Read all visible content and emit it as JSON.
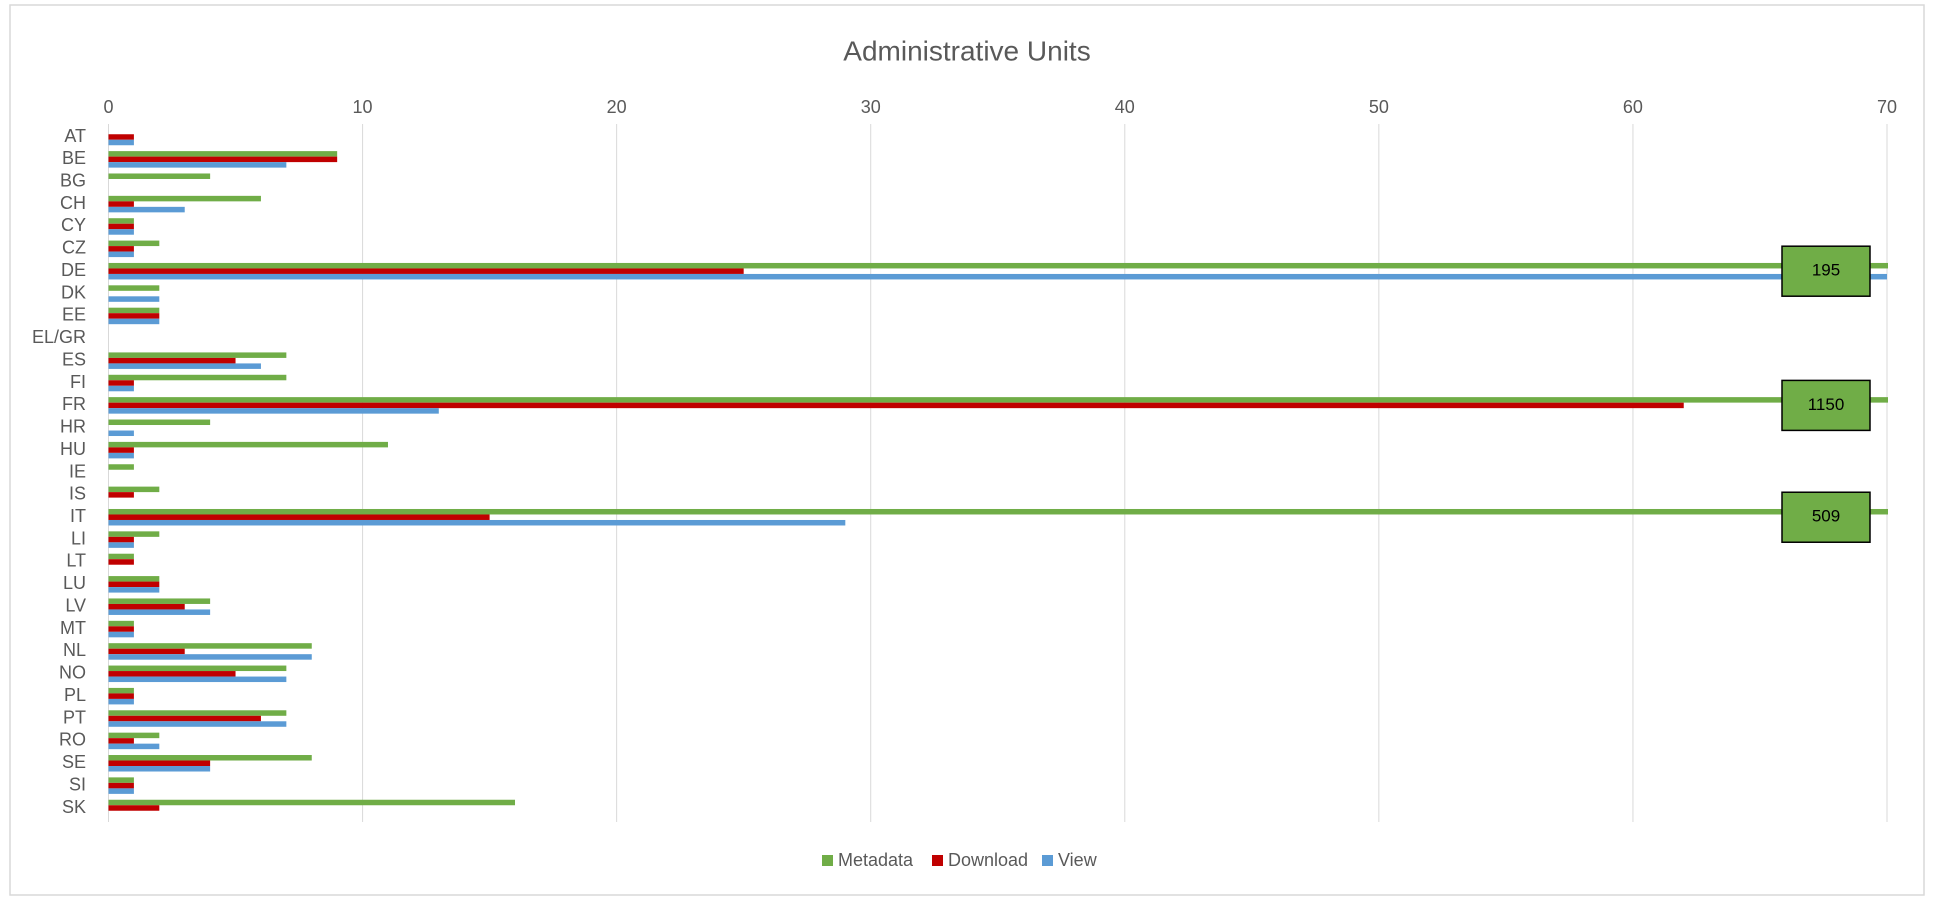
{
  "chart_data": {
    "type": "bar",
    "orientation": "horizontal",
    "title": "Administrative Units",
    "categories": [
      "AT",
      "BE",
      "BG",
      "CH",
      "CY",
      "CZ",
      "DE",
      "DK",
      "EE",
      "EL/GR",
      "ES",
      "FI",
      "FR",
      "HR",
      "HU",
      "IE",
      "IS",
      "IT",
      "LI",
      "LT",
      "LU",
      "LV",
      "MT",
      "NL",
      "NO",
      "PL",
      "PT",
      "RO",
      "SE",
      "SI",
      "SK"
    ],
    "series": [
      {
        "name": "Metadata",
        "color": "#70ad47",
        "values": [
          0,
          9,
          4,
          6,
          1,
          2,
          195,
          2,
          2,
          0,
          7,
          7,
          1150,
          4,
          11,
          1,
          2,
          509,
          2,
          1,
          2,
          4,
          1,
          8,
          7,
          1,
          7,
          2,
          8,
          1,
          16
        ],
        "value_labels": [
          null,
          null,
          null,
          null,
          null,
          null,
          "195",
          null,
          null,
          null,
          null,
          null,
          "1150",
          null,
          null,
          null,
          null,
          "509",
          null,
          null,
          null,
          null,
          null,
          null,
          null,
          null,
          null,
          null,
          null,
          null,
          null
        ]
      },
      {
        "name": "Download",
        "color": "#c00000",
        "values": [
          1,
          9,
          0,
          1,
          1,
          1,
          25,
          0,
          2,
          0,
          5,
          1,
          62,
          0,
          1,
          0,
          1,
          15,
          1,
          1,
          2,
          3,
          1,
          3,
          5,
          1,
          6,
          1,
          4,
          1,
          2
        ]
      },
      {
        "name": "View",
        "color": "#5b9bd5",
        "values": [
          1,
          7,
          0,
          3,
          1,
          1,
          70,
          2,
          2,
          0,
          6,
          1,
          13,
          1,
          1,
          0,
          0,
          29,
          1,
          0,
          2,
          4,
          1,
          8,
          7,
          1,
          7,
          2,
          4,
          1,
          0
        ]
      }
    ],
    "xlim": [
      0,
      70
    ],
    "xticks": [
      0,
      10,
      20,
      30,
      40,
      50,
      60,
      70
    ],
    "grid": true,
    "legend": "bottom"
  }
}
